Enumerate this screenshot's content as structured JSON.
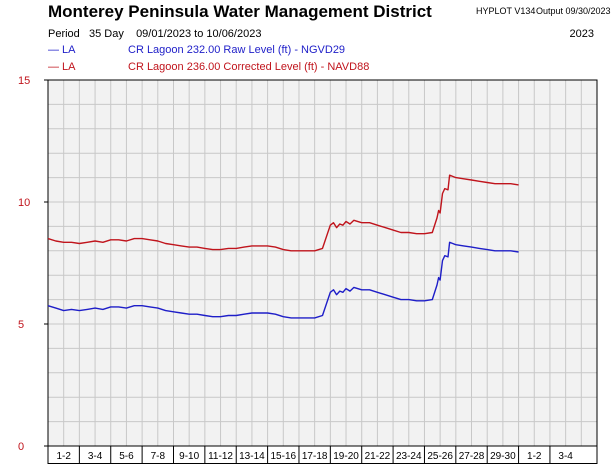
{
  "header": {
    "title": "Monterey Peninsula Water Management District",
    "version": "HYPLOT V134",
    "output_label": "Output 09/30/2023",
    "period_label": "Period",
    "period_days": "35 Day",
    "period_range": "09/01/2023  to  10/06/2023",
    "year": "2023"
  },
  "legend": [
    {
      "mark": "—",
      "code": "LA",
      "text": "CR Lagoon  232.00 Raw Level (ft) - NGVD29",
      "color": "#1e1ec8"
    },
    {
      "mark": "—",
      "code": "LA",
      "text": "CR Lagoon  236.00 Corrected Level (ft) - NAVD88",
      "color": "#c0141c"
    }
  ],
  "chart_data": {
    "type": "line",
    "ylim": [
      0,
      15
    ],
    "yticks": [
      "0",
      "5",
      "10",
      "15"
    ],
    "xlim": [
      0,
      35
    ],
    "categories": [
      "1-2",
      "3-4",
      "5-6",
      "7-8",
      "9-10",
      "11-12",
      "13-14",
      "15-16",
      "17-18",
      "19-20",
      "21-22",
      "23-24",
      "25-26",
      "27-28",
      "29-30",
      "1-2",
      "3-4"
    ],
    "grid": true,
    "series": [
      {
        "name": "CR Lagoon  232.00 Raw Level (ft) - NGVD29",
        "color": "#1e1ec8",
        "x": [
          0,
          0.5,
          1,
          1.5,
          2,
          2.5,
          3,
          3.5,
          4,
          4.5,
          5,
          5.5,
          6,
          6.5,
          7,
          7.5,
          8,
          8.5,
          9,
          9.5,
          10,
          10.5,
          11,
          11.5,
          12,
          12.5,
          13,
          13.5,
          14,
          14.5,
          15,
          15.5,
          16,
          16.5,
          17,
          17.5,
          18,
          18.2,
          18.4,
          18.6,
          18.8,
          19,
          19.25,
          19.5,
          20,
          20.5,
          21,
          21.5,
          22,
          22.5,
          23,
          23.5,
          24,
          24.5,
          24.8,
          24.9,
          25,
          25.15,
          25.3,
          25.5,
          25.6,
          25.8,
          26,
          26.5,
          27,
          27.5,
          28,
          28.5,
          29,
          29.5,
          30
        ],
        "y": [
          5.75,
          5.65,
          5.55,
          5.6,
          5.55,
          5.6,
          5.65,
          5.6,
          5.7,
          5.7,
          5.65,
          5.75,
          5.75,
          5.7,
          5.65,
          5.55,
          5.5,
          5.45,
          5.4,
          5.4,
          5.35,
          5.3,
          5.3,
          5.35,
          5.35,
          5.4,
          5.45,
          5.45,
          5.45,
          5.4,
          5.3,
          5.25,
          5.25,
          5.25,
          5.25,
          5.35,
          6.3,
          6.4,
          6.2,
          6.35,
          6.3,
          6.45,
          6.35,
          6.5,
          6.4,
          6.4,
          6.3,
          6.2,
          6.1,
          6.0,
          6.0,
          5.95,
          5.95,
          6.0,
          6.6,
          6.9,
          6.8,
          7.6,
          7.8,
          7.75,
          8.35,
          8.3,
          8.25,
          8.2,
          8.15,
          8.1,
          8.05,
          8.0,
          8.0,
          8.0,
          7.95
        ]
      },
      {
        "name": "CR Lagoon  236.00 Corrected Level (ft) - NAVD88",
        "color": "#c0141c",
        "x": [
          0,
          0.5,
          1,
          1.5,
          2,
          2.5,
          3,
          3.5,
          4,
          4.5,
          5,
          5.5,
          6,
          6.5,
          7,
          7.5,
          8,
          8.5,
          9,
          9.5,
          10,
          10.5,
          11,
          11.5,
          12,
          12.5,
          13,
          13.5,
          14,
          14.5,
          15,
          15.5,
          16,
          16.5,
          17,
          17.5,
          18,
          18.2,
          18.4,
          18.6,
          18.8,
          19,
          19.25,
          19.5,
          20,
          20.5,
          21,
          21.5,
          22,
          22.5,
          23,
          23.5,
          24,
          24.5,
          24.8,
          24.9,
          25,
          25.15,
          25.3,
          25.5,
          25.6,
          25.8,
          26,
          26.5,
          27,
          27.5,
          28,
          28.5,
          29,
          29.5,
          30
        ],
        "y": [
          8.5,
          8.4,
          8.35,
          8.35,
          8.3,
          8.35,
          8.4,
          8.35,
          8.45,
          8.45,
          8.4,
          8.5,
          8.5,
          8.45,
          8.4,
          8.3,
          8.25,
          8.2,
          8.15,
          8.15,
          8.1,
          8.05,
          8.05,
          8.1,
          8.1,
          8.15,
          8.2,
          8.2,
          8.2,
          8.15,
          8.05,
          8.0,
          8.0,
          8.0,
          8.0,
          8.1,
          9.05,
          9.15,
          8.95,
          9.1,
          9.05,
          9.2,
          9.1,
          9.25,
          9.15,
          9.15,
          9.05,
          8.95,
          8.85,
          8.75,
          8.75,
          8.7,
          8.7,
          8.75,
          9.35,
          9.65,
          9.55,
          10.35,
          10.55,
          10.5,
          11.1,
          11.05,
          11.0,
          10.95,
          10.9,
          10.85,
          10.8,
          10.75,
          10.75,
          10.75,
          10.7
        ]
      }
    ]
  }
}
